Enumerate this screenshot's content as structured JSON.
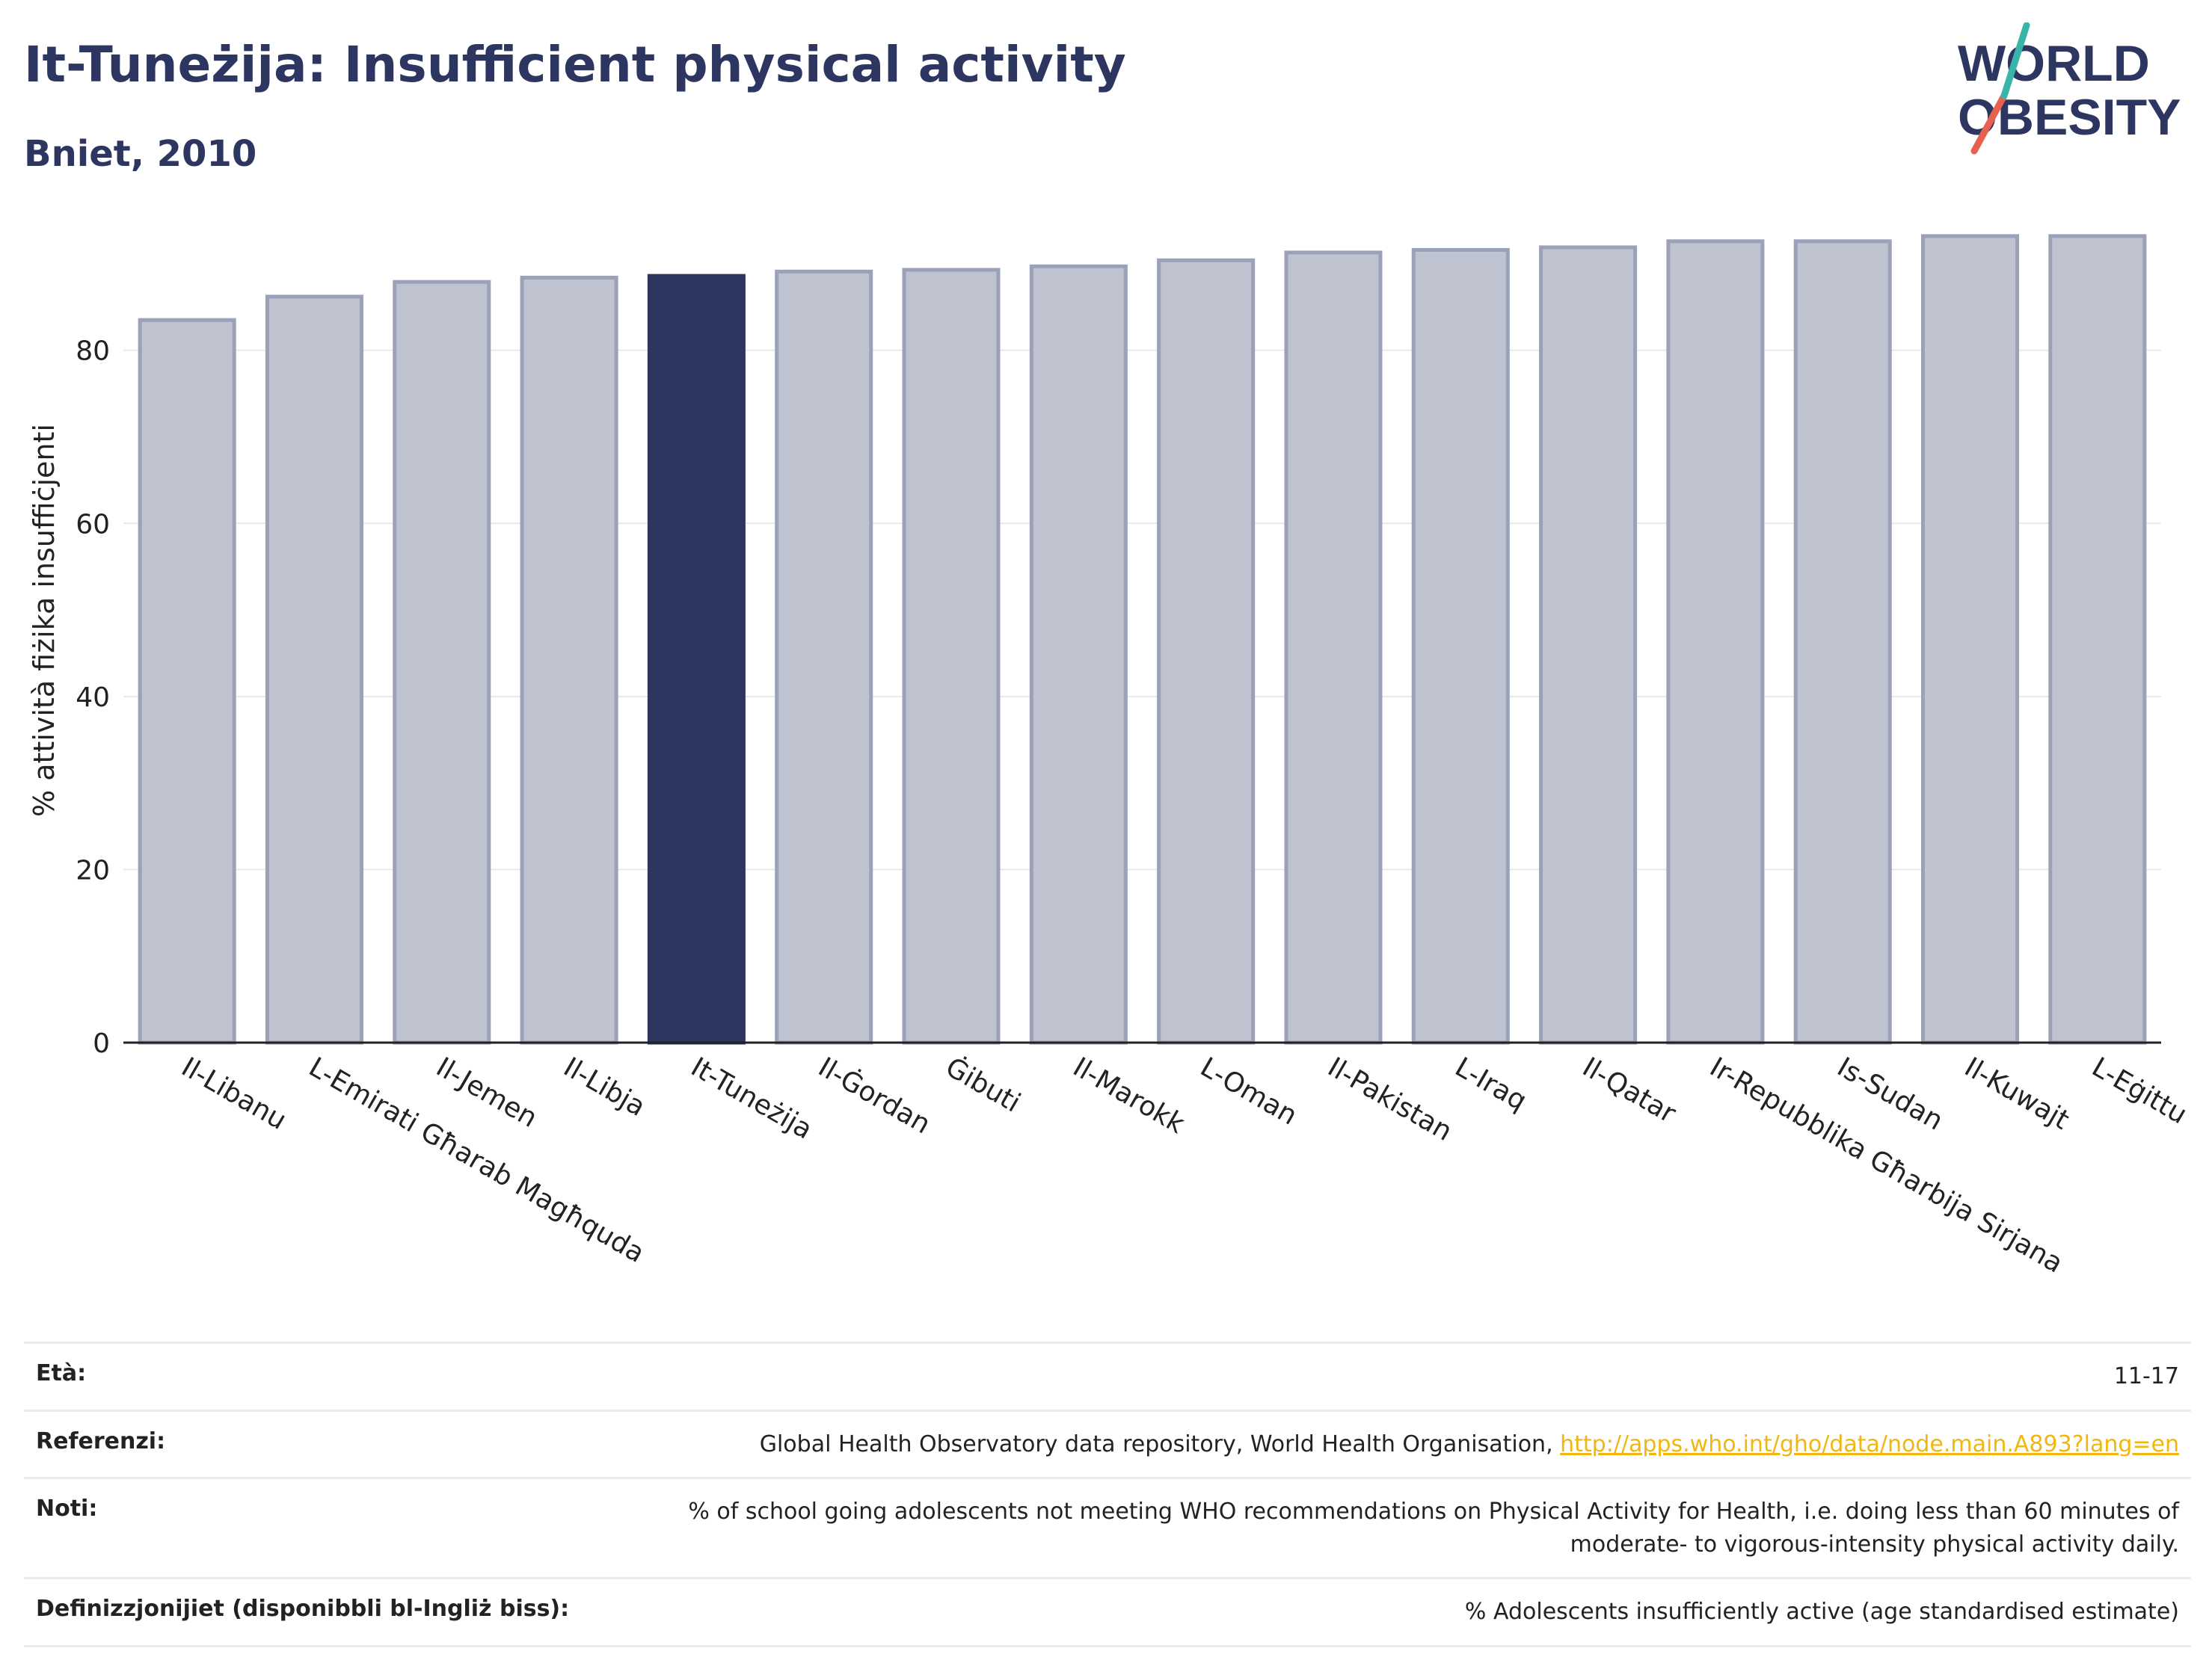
{
  "header": {
    "title": "It-Tuneżija: Insufficient physical activity",
    "subtitle": "Bniet, 2010"
  },
  "logo": {
    "line1": "WORLD",
    "line2": "OBESITY",
    "colors": {
      "text": "#2d3660",
      "slash_red": "#e8614f",
      "slash_teal": "#38b5a8"
    }
  },
  "chart_data": {
    "type": "bar",
    "title": "",
    "xlabel": "",
    "ylabel": "% attività fiżika insuffiċjenti",
    "ylim": [
      0,
      95
    ],
    "yticks": [
      0,
      20,
      40,
      60,
      80
    ],
    "grid": true,
    "highlight": "It-Tuneżija",
    "colors": {
      "bar": "#bfc3d0",
      "bar_edge": "#9aa1b8",
      "highlight": "#2d3660",
      "grid": "#e8e9ee",
      "axis": "#222222"
    },
    "categories": [
      "Il-Libanu",
      "L-Emirati Għarab Magħquda",
      "Il-Jemen",
      "Il-Libja",
      "It-Tuneżija",
      "Il-Ġordan",
      "Ġibuti",
      "Il-Marokk",
      "L-Oman",
      "Il-Pakistan",
      "L-Iraq",
      "Il-Qatar",
      "Ir-Repubblika Għarbija Sirjana",
      "Is-Sudan",
      "Il-Kuwajt",
      "L-Eġittu"
    ],
    "values": [
      83.5,
      86.2,
      87.9,
      88.4,
      88.6,
      89.1,
      89.3,
      89.7,
      90.4,
      91.3,
      91.6,
      91.9,
      92.6,
      92.6,
      93.2,
      93.2
    ]
  },
  "meta": {
    "rows": [
      {
        "key": "Età:",
        "value": "11-17"
      },
      {
        "key": "Referenzi:",
        "value": "Global Health Observatory data repository, World Health Organisation, ",
        "link": "http://apps.who.int/gho/data/node.main.A893?lang=en"
      },
      {
        "key": "Noti:",
        "value": "% of school going adolescents not meeting WHO recommendations on Physical Activity for Health, i.e. doing less than 60 minutes of moderate- to vigorous-intensity physical activity daily."
      },
      {
        "key": "Definizzjonijiet (disponibbli bl-Ingliż biss):",
        "value": "% Adolescents insufficiently active (age standardised estimate)"
      }
    ]
  }
}
